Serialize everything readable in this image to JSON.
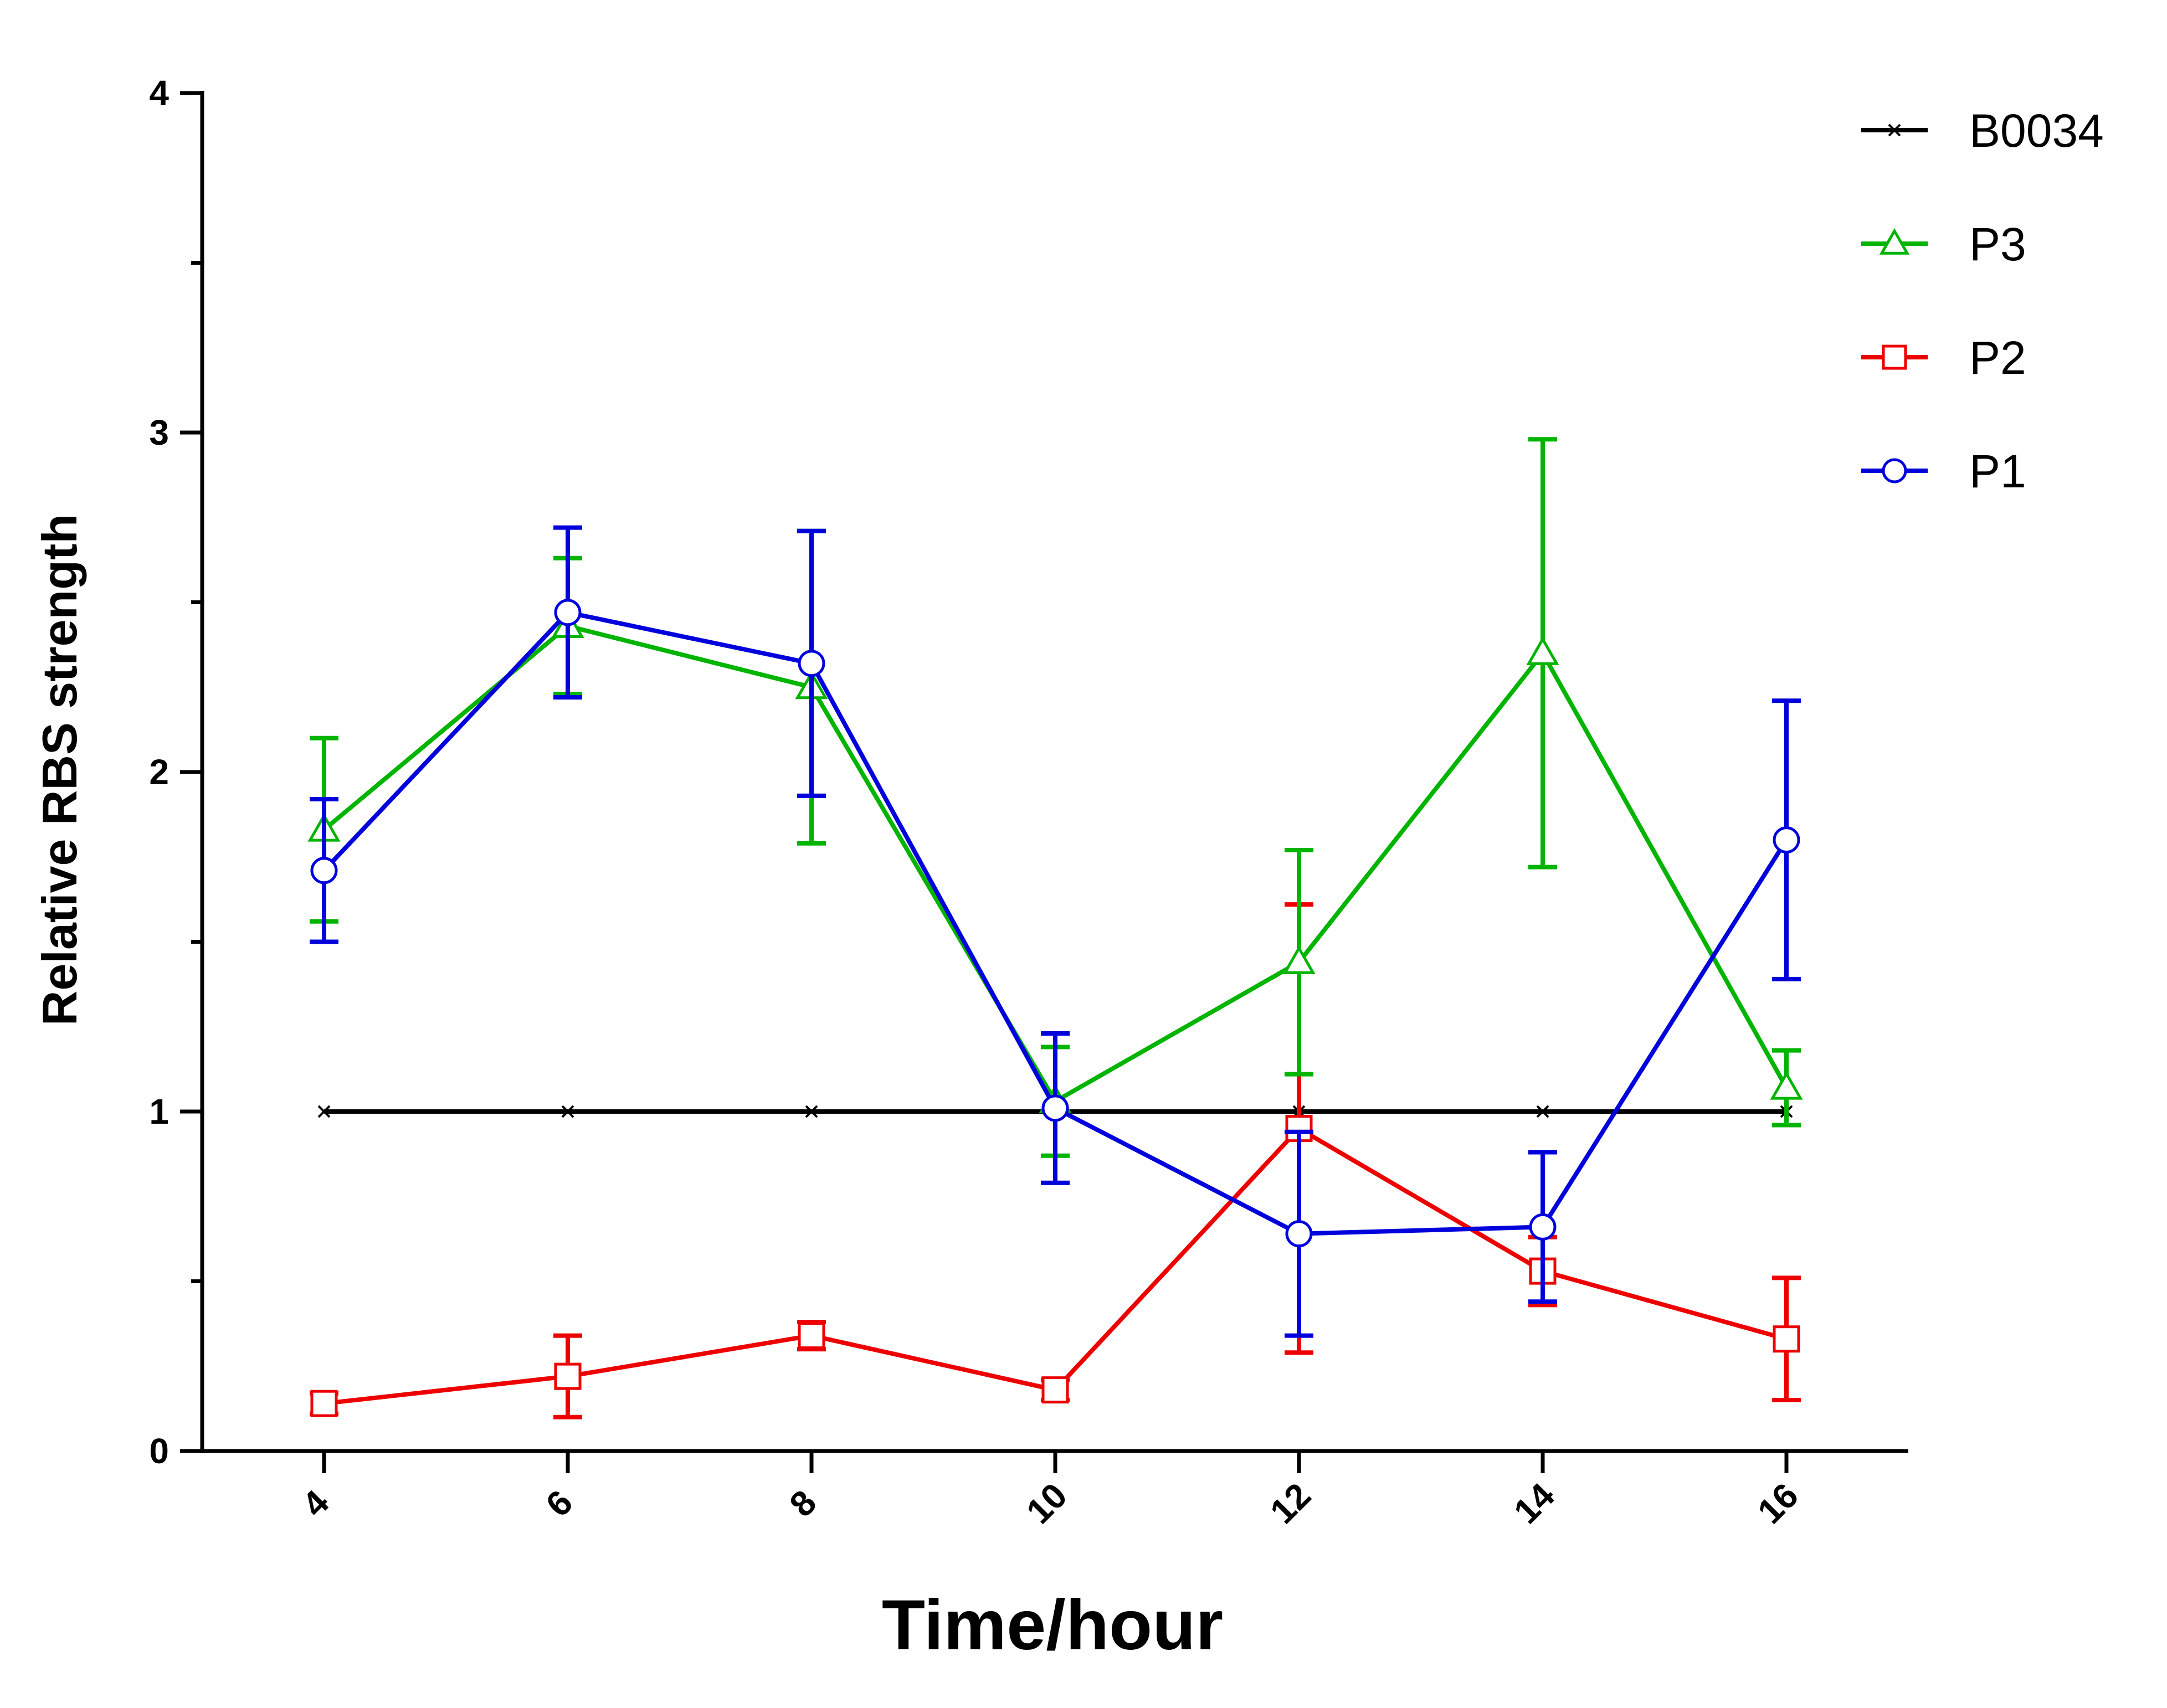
{
  "chart_data": {
    "type": "line",
    "title": "",
    "xlabel": "Time/hour",
    "ylabel": "Relative RBS strength",
    "x": [
      4,
      6,
      8,
      10,
      12,
      14,
      16
    ],
    "x_ticks": [
      "4",
      "6",
      "8",
      "10",
      "12",
      "14",
      "16"
    ],
    "y_ticks": [
      "0",
      "1",
      "2",
      "3",
      "4"
    ],
    "xlim": [
      3,
      17
    ],
    "ylim": [
      0,
      4
    ],
    "grid": false,
    "legend_position": "top-right",
    "series": [
      {
        "name": "B0034",
        "color": "#000000",
        "marker": "cross",
        "values": [
          1,
          1,
          1,
          1,
          1,
          1,
          1
        ],
        "errors": [
          0,
          0,
          0,
          0,
          0,
          0,
          0
        ]
      },
      {
        "name": "P3",
        "color": "#00b400",
        "marker": "triangle",
        "values": [
          1.83,
          2.43,
          2.25,
          1.03,
          1.44,
          2.35,
          1.07
        ],
        "errors": [
          0.27,
          0.2,
          0.46,
          0.16,
          0.33,
          0.63,
          0.11
        ]
      },
      {
        "name": "P2",
        "color": "#ee0000",
        "marker": "square",
        "values": [
          0.14,
          0.22,
          0.34,
          0.18,
          0.95,
          0.53,
          0.33
        ],
        "errors": [
          0.03,
          0.12,
          0.04,
          0.03,
          0.66,
          0.1,
          0.18
        ]
      },
      {
        "name": "P1",
        "color": "#0000dd",
        "marker": "circle",
        "values": [
          1.71,
          2.47,
          2.32,
          1.01,
          0.64,
          0.66,
          1.8
        ],
        "errors": [
          0.21,
          0.25,
          0.39,
          0.22,
          0.3,
          0.22,
          0.41
        ]
      }
    ]
  }
}
